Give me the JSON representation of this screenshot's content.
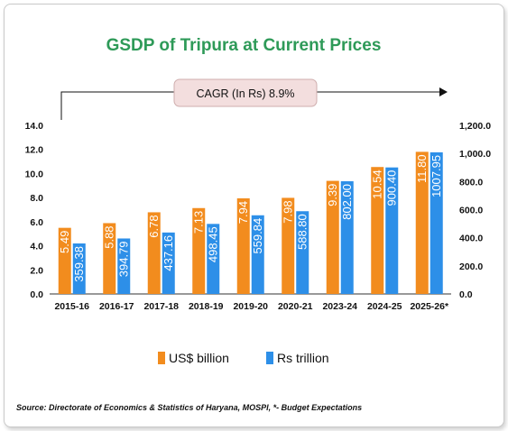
{
  "chart_data": {
    "type": "bar",
    "title": "GSDP of Tripura at Current Prices",
    "annotation": "CAGR (In Rs) 8.9%",
    "categories": [
      "2015-16",
      "2016-17",
      "2017-18",
      "2018-19",
      "2019-20",
      "2020-21",
      "2023-24",
      "2024-25",
      "2025-26*"
    ],
    "series": [
      {
        "name": "US$ billion",
        "axis": "left",
        "color": "#f28c1e",
        "values": [
          5.49,
          5.88,
          6.78,
          7.13,
          7.94,
          7.98,
          9.39,
          10.54,
          11.8
        ],
        "labels": [
          "5.49",
          "5.88",
          "6.78",
          "7.13",
          "7.94",
          "7.98",
          "9.39",
          "10.54",
          "11.80"
        ]
      },
      {
        "name": "Rs trillion",
        "axis": "right",
        "color": "#2d8fe8",
        "values": [
          359.38,
          394.79,
          437.16,
          498.45,
          559.84,
          588.8,
          802.0,
          900.4,
          1007.95
        ],
        "labels": [
          "359.38",
          "394.79",
          "437.16",
          "498.45",
          "559.84",
          "588.80",
          "802.00",
          "900.40",
          "1007.95"
        ]
      }
    ],
    "y_left": {
      "range": [
        0,
        14
      ],
      "ticks": [
        "0.0",
        "2.0",
        "4.0",
        "6.0",
        "8.0",
        "10.0",
        "12.0",
        "14.0"
      ]
    },
    "y_right": {
      "range": [
        0,
        1200
      ],
      "ticks": [
        "0.0",
        "200.0",
        "400.0",
        "600.0",
        "800.0",
        "1,000.0",
        "1,200.0"
      ]
    },
    "legend_position": "bottom",
    "grid": false,
    "source": "Source: Directorate of Economics & Statistics of Haryana, MOSPI, *- Budget Expectations"
  }
}
